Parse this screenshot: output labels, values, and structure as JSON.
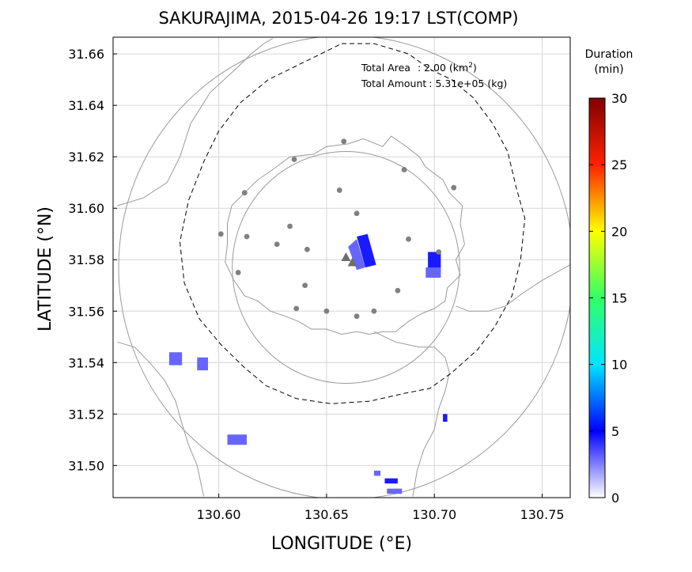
{
  "title": "SAKURAJIMA, 2015-04-26 19:17 LST(COMP)",
  "info": {
    "area_label": "Total Area",
    "area_value": ": 2.00 (km",
    "area_sup": "2",
    "area_close": ")",
    "amount_label": "Total Amount",
    "amount_value": ": 5.31e+05 (kg)"
  },
  "xaxis": {
    "label": "LONGITUDE (°E)",
    "ticks": [
      "130.60",
      "130.65",
      "130.70",
      "130.75"
    ],
    "tick_values": [
      130.6,
      130.65,
      130.7,
      130.75
    ],
    "range": [
      130.551,
      130.763
    ]
  },
  "yaxis": {
    "label": "LATITUDE (°N)",
    "ticks": [
      "31.66",
      "31.64",
      "31.62",
      "31.60",
      "31.58",
      "31.56",
      "31.54",
      "31.52",
      "31.50"
    ],
    "tick_values": [
      31.66,
      31.64,
      31.62,
      31.6,
      31.58,
      31.56,
      31.54,
      31.52,
      31.5
    ],
    "range": [
      31.4875,
      31.6665
    ]
  },
  "grid": true,
  "colorbar": {
    "title_line1": "Duration",
    "title_line2": "(min)",
    "ticks": [
      "30",
      "25",
      "20",
      "15",
      "10",
      "5",
      "0"
    ],
    "tick_values": [
      30,
      25,
      20,
      15,
      10,
      5,
      0
    ],
    "range": [
      0,
      30
    ]
  },
  "colors": {
    "coast": "#9a9a9a",
    "grid": "#d6d6d6",
    "station": "#808080",
    "volcano": "#6e6e6e",
    "ash_dark": "#1a1aff",
    "ash_light": "#6666ff"
  },
  "circles": [
    {
      "center": [
        130.659,
        31.577
      ],
      "radius_km": 5
    },
    {
      "center": [
        130.659,
        31.577
      ],
      "radius_km": 10
    }
  ],
  "stations": [
    [
      130.658,
      31.626
    ],
    [
      130.635,
      31.619
    ],
    [
      130.686,
      31.615
    ],
    [
      130.612,
      31.606
    ],
    [
      130.656,
      31.607
    ],
    [
      130.709,
      31.608
    ],
    [
      130.664,
      31.598
    ],
    [
      130.601,
      31.59
    ],
    [
      130.613,
      31.589
    ],
    [
      130.633,
      31.593
    ],
    [
      130.688,
      31.588
    ],
    [
      130.627,
      31.586
    ],
    [
      130.641,
      31.584
    ],
    [
      130.702,
      31.583
    ],
    [
      130.609,
      31.575
    ],
    [
      130.64,
      31.57
    ],
    [
      130.683,
      31.568
    ],
    [
      130.636,
      31.561
    ],
    [
      130.65,
      31.56
    ],
    [
      130.664,
      31.558
    ],
    [
      130.672,
      31.56
    ]
  ],
  "volcanoes": [
    [
      130.659,
      31.581
    ],
    [
      130.662,
      31.579
    ]
  ],
  "ash_polygons": [
    {
      "shade": "dark",
      "points": [
        [
          130.664,
          31.589
        ],
        [
          130.669,
          31.59
        ],
        [
          130.673,
          31.578
        ],
        [
          130.668,
          31.577
        ]
      ]
    },
    {
      "shade": "light",
      "points": [
        [
          130.66,
          31.585
        ],
        [
          130.664,
          31.588
        ],
        [
          130.668,
          31.577
        ],
        [
          130.664,
          31.576
        ]
      ]
    },
    {
      "shade": "dark",
      "points": [
        [
          130.697,
          31.583
        ],
        [
          130.703,
          31.583
        ],
        [
          130.703,
          31.575
        ],
        [
          130.697,
          31.575
        ]
      ]
    },
    {
      "shade": "light",
      "points": [
        [
          130.696,
          31.577
        ],
        [
          130.703,
          31.577
        ],
        [
          130.703,
          31.573
        ],
        [
          130.696,
          31.573
        ]
      ]
    },
    {
      "shade": "light",
      "points": [
        [
          130.577,
          31.544
        ],
        [
          130.583,
          31.544
        ],
        [
          130.583,
          31.539
        ],
        [
          130.577,
          31.539
        ]
      ]
    },
    {
      "shade": "light",
      "points": [
        [
          130.59,
          31.542
        ],
        [
          130.595,
          31.542
        ],
        [
          130.595,
          31.537
        ],
        [
          130.59,
          31.537
        ]
      ]
    },
    {
      "shade": "light",
      "points": [
        [
          130.604,
          31.512
        ],
        [
          130.613,
          31.512
        ],
        [
          130.613,
          31.508
        ],
        [
          130.604,
          31.508
        ]
      ]
    },
    {
      "shade": "dark",
      "points": [
        [
          130.677,
          31.495
        ],
        [
          130.683,
          31.495
        ],
        [
          130.683,
          31.493
        ],
        [
          130.677,
          31.493
        ]
      ]
    },
    {
      "shade": "light",
      "points": [
        [
          130.672,
          31.498
        ],
        [
          130.675,
          31.498
        ],
        [
          130.675,
          31.496
        ],
        [
          130.672,
          31.496
        ]
      ]
    },
    {
      "shade": "light",
      "points": [
        [
          130.678,
          31.491
        ],
        [
          130.685,
          31.491
        ],
        [
          130.685,
          31.489
        ],
        [
          130.678,
          31.489
        ]
      ]
    },
    {
      "shade": "dark",
      "points": [
        [
          130.704,
          31.52
        ],
        [
          130.706,
          31.52
        ],
        [
          130.706,
          31.517
        ],
        [
          130.704,
          31.517
        ]
      ]
    }
  ],
  "coastlines": [
    {
      "closed": true,
      "points": [
        [
          130.625,
          31.615
        ],
        [
          130.633,
          31.62
        ],
        [
          130.644,
          31.621
        ],
        [
          130.65,
          31.624
        ],
        [
          130.66,
          31.625
        ],
        [
          130.667,
          31.627
        ],
        [
          130.676,
          31.624
        ],
        [
          130.68,
          31.628
        ],
        [
          130.687,
          31.624
        ],
        [
          130.693,
          31.62
        ],
        [
          130.696,
          31.616
        ],
        [
          130.704,
          31.611
        ],
        [
          130.707,
          31.606
        ],
        [
          130.713,
          31.601
        ],
        [
          130.712,
          31.594
        ],
        [
          130.714,
          31.586
        ],
        [
          130.71,
          31.58
        ],
        [
          130.712,
          31.574
        ],
        [
          130.706,
          31.569
        ],
        [
          130.705,
          31.564
        ],
        [
          130.7,
          31.561
        ],
        [
          130.694,
          31.559
        ],
        [
          130.688,
          31.556
        ],
        [
          130.682,
          31.552
        ],
        [
          130.676,
          31.552
        ],
        [
          130.67,
          31.551
        ],
        [
          130.664,
          31.552
        ],
        [
          130.657,
          31.551
        ],
        [
          130.65,
          31.553
        ],
        [
          130.643,
          31.553
        ],
        [
          130.637,
          31.556
        ],
        [
          130.631,
          31.558
        ],
        [
          130.624,
          31.56
        ],
        [
          130.618,
          31.564
        ],
        [
          130.612,
          31.566
        ],
        [
          130.607,
          31.572
        ],
        [
          130.603,
          31.579
        ],
        [
          130.604,
          31.586
        ],
        [
          130.604,
          31.594
        ],
        [
          130.606,
          31.601
        ],
        [
          130.612,
          31.606
        ],
        [
          130.618,
          31.611
        ]
      ]
    },
    {
      "closed": false,
      "points": [
        [
          130.553,
          31.601
        ],
        [
          130.565,
          31.604
        ],
        [
          130.576,
          31.61
        ],
        [
          130.582,
          31.62
        ],
        [
          130.587,
          31.633
        ],
        [
          130.596,
          31.645
        ],
        [
          130.609,
          31.655
        ],
        [
          130.615,
          31.66
        ],
        [
          130.621,
          31.664
        ],
        [
          130.625,
          31.666
        ]
      ]
    },
    {
      "closed": false,
      "points": [
        [
          130.553,
          31.548
        ],
        [
          130.561,
          31.546
        ],
        [
          130.568,
          31.54
        ],
        [
          130.575,
          31.533
        ],
        [
          130.58,
          31.525
        ],
        [
          130.583,
          31.516
        ],
        [
          130.586,
          31.508
        ],
        [
          130.59,
          31.5
        ],
        [
          130.593,
          31.488
        ]
      ]
    },
    {
      "closed": false,
      "points": [
        [
          130.672,
          31.552
        ],
        [
          130.682,
          31.548
        ],
        [
          130.693,
          31.546
        ],
        [
          130.7,
          31.546
        ],
        [
          130.705,
          31.542
        ],
        [
          130.707,
          31.536
        ],
        [
          130.705,
          31.529
        ],
        [
          130.702,
          31.522
        ],
        [
          130.7,
          31.514
        ],
        [
          130.695,
          31.506
        ],
        [
          130.692,
          31.498
        ],
        [
          130.69,
          31.488
        ]
      ]
    },
    {
      "closed": false,
      "points": [
        [
          130.763,
          31.578
        ],
        [
          130.75,
          31.572
        ],
        [
          130.741,
          31.567
        ],
        [
          130.733,
          31.562
        ],
        [
          130.725,
          31.56
        ],
        [
          130.716,
          31.56
        ],
        [
          130.71,
          31.562
        ]
      ]
    }
  ],
  "dashed_boundary": [
    [
      130.657,
      31.664
    ],
    [
      130.672,
      31.664
    ],
    [
      130.688,
      31.66
    ],
    [
      130.698,
      31.654
    ],
    [
      130.708,
      31.65
    ],
    [
      130.718,
      31.643
    ],
    [
      130.727,
      31.633
    ],
    [
      130.734,
      31.622
    ],
    [
      130.738,
      31.608
    ],
    [
      130.742,
      31.596
    ],
    [
      130.74,
      31.58
    ],
    [
      130.736,
      31.566
    ],
    [
      130.728,
      31.554
    ],
    [
      130.72,
      31.545
    ],
    [
      130.708,
      31.536
    ],
    [
      130.698,
      31.53
    ],
    [
      130.686,
      31.528
    ],
    [
      130.67,
      31.525
    ],
    [
      130.652,
      31.524
    ],
    [
      130.636,
      31.526
    ],
    [
      130.622,
      31.531
    ],
    [
      130.612,
      31.538
    ],
    [
      130.601,
      31.547
    ],
    [
      130.591,
      31.557
    ],
    [
      130.584,
      31.571
    ],
    [
      130.582,
      31.587
    ],
    [
      130.586,
      31.603
    ],
    [
      130.593,
      31.618
    ],
    [
      130.6,
      31.63
    ],
    [
      130.61,
      31.641
    ],
    [
      130.623,
      31.65
    ],
    [
      130.64,
      31.657
    ]
  ]
}
